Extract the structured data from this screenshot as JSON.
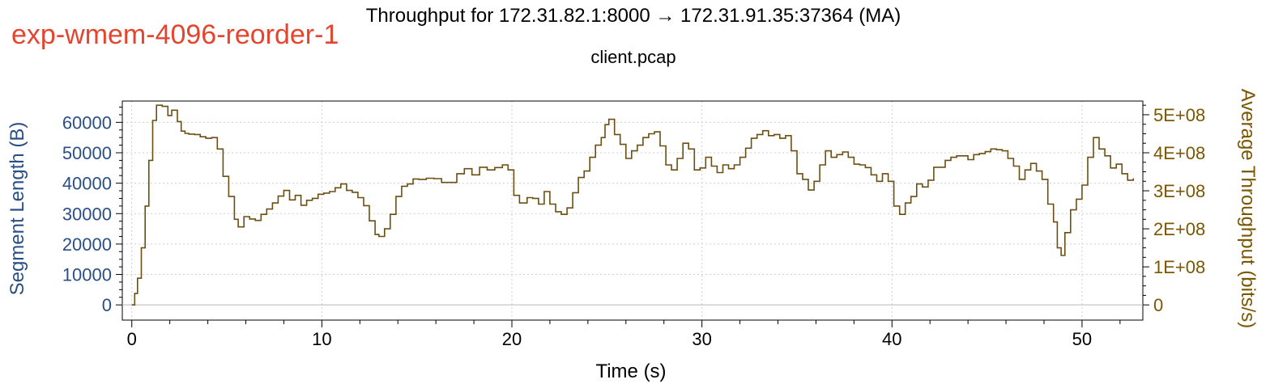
{
  "window_label": "exp-wmem-4096-reorder-1",
  "colors": {
    "overlay_label": "#e5452e",
    "left_axis": "#2a4f86",
    "right_axis": "#7a5700",
    "series": "#6b4f12",
    "grid": "#cfcfcf",
    "zero_line": "#b8b8b8",
    "frame": "#000000"
  },
  "chart_data": {
    "type": "line",
    "title": "Throughput for 172.31.82.1:8000 → 172.31.91.35:37364 (MA)",
    "subtitle": "client.pcap",
    "xlabel": "Time (s)",
    "ylabel_left": "Segment Length (B)",
    "ylabel_right": "Average Throughput (bits/s)",
    "xlim": [
      -0.5,
      53.2
    ],
    "ylim_left": [
      -5000,
      67000
    ],
    "ylim_right": [
      -40000000,
      536000000
    ],
    "x_ticks": [
      "0",
      "10",
      "20",
      "30",
      "40",
      "50"
    ],
    "y_left_ticks": [
      "0",
      "10000",
      "20000",
      "30000",
      "40000",
      "50000",
      "60000"
    ],
    "y_right_ticks": [
      "0",
      "1E+08",
      "2E+08",
      "3E+08",
      "4E+08",
      "5E+08"
    ],
    "grid": true,
    "series": [
      {
        "axis": "right",
        "x": [
          0.0,
          0.15,
          0.3,
          0.5,
          0.7,
          0.9,
          1.1,
          1.3,
          1.6,
          1.9,
          2.1,
          2.4,
          2.6,
          2.8,
          3.0,
          3.3,
          3.6,
          3.9,
          4.2,
          4.5,
          4.8,
          5.1,
          5.4,
          5.6,
          5.9,
          6.2,
          6.5,
          6.8,
          7.1,
          7.4,
          7.7,
          8.0,
          8.3,
          8.6,
          8.9,
          9.2,
          9.5,
          9.8,
          10.1,
          10.4,
          10.7,
          11.0,
          11.3,
          11.6,
          11.9,
          12.2,
          12.5,
          12.8,
          13.0,
          13.3,
          13.6,
          13.9,
          14.2,
          14.5,
          14.8,
          15.1,
          15.5,
          15.9,
          16.3,
          16.7,
          17.1,
          17.5,
          17.9,
          18.3,
          18.7,
          19.1,
          19.5,
          19.8,
          20.1,
          20.4,
          20.8,
          21.1,
          21.4,
          21.7,
          22.0,
          22.3,
          22.6,
          22.9,
          23.2,
          23.5,
          23.8,
          24.1,
          24.4,
          24.7,
          24.9,
          25.1,
          25.4,
          25.7,
          26.0,
          26.3,
          26.6,
          26.9,
          27.2,
          27.5,
          27.8,
          28.1,
          28.4,
          28.7,
          29.0,
          29.3,
          29.6,
          29.9,
          30.2,
          30.5,
          30.8,
          31.1,
          31.4,
          31.7,
          32.0,
          32.3,
          32.6,
          32.9,
          33.2,
          33.5,
          33.8,
          34.1,
          34.4,
          34.7,
          35.0,
          35.3,
          35.6,
          35.9,
          36.2,
          36.5,
          36.8,
          37.1,
          37.4,
          37.7,
          38.0,
          38.3,
          38.6,
          38.9,
          39.2,
          39.5,
          39.8,
          40.1,
          40.4,
          40.7,
          41.0,
          41.3,
          41.6,
          41.9,
          42.2,
          42.5,
          42.8,
          43.1,
          43.4,
          43.7,
          44.0,
          44.3,
          44.6,
          44.9,
          45.2,
          45.5,
          45.8,
          46.1,
          46.4,
          46.7,
          47.0,
          47.3,
          47.6,
          47.9,
          48.2,
          48.5,
          48.7,
          48.9,
          49.1,
          49.4,
          49.7,
          50.0,
          50.3,
          50.6,
          50.9,
          51.2,
          51.5,
          51.8,
          52.1,
          52.4,
          52.7
        ],
        "y": [
          0,
          30000000,
          70000000,
          150000000,
          260000000,
          380000000,
          485000000,
          525000000,
          522000000,
          498000000,
          512000000,
          482000000,
          457000000,
          451000000,
          449000000,
          448000000,
          442000000,
          438000000,
          440000000,
          410000000,
          338000000,
          285000000,
          225000000,
          205000000,
          232000000,
          226000000,
          222000000,
          238000000,
          252000000,
          268000000,
          286000000,
          301000000,
          276000000,
          288000000,
          262000000,
          275000000,
          280000000,
          291000000,
          294000000,
          298000000,
          308000000,
          318000000,
          301000000,
          296000000,
          282000000,
          261000000,
          221000000,
          185000000,
          180000000,
          200000000,
          238000000,
          285000000,
          312000000,
          318000000,
          331000000,
          330000000,
          333000000,
          332000000,
          322000000,
          322000000,
          345000000,
          358000000,
          342000000,
          362000000,
          355000000,
          361000000,
          368000000,
          355000000,
          288000000,
          268000000,
          282000000,
          280000000,
          265000000,
          298000000,
          265000000,
          245000000,
          238000000,
          255000000,
          295000000,
          335000000,
          352000000,
          388000000,
          420000000,
          440000000,
          474000000,
          488000000,
          448000000,
          422000000,
          385000000,
          405000000,
          420000000,
          440000000,
          450000000,
          455000000,
          418000000,
          368000000,
          355000000,
          385000000,
          425000000,
          410000000,
          355000000,
          360000000,
          388000000,
          365000000,
          348000000,
          368000000,
          358000000,
          368000000,
          388000000,
          412000000,
          438000000,
          448000000,
          458000000,
          445000000,
          448000000,
          438000000,
          445000000,
          405000000,
          345000000,
          330000000,
          302000000,
          325000000,
          368000000,
          405000000,
          388000000,
          395000000,
          402000000,
          388000000,
          370000000,
          368000000,
          361000000,
          342000000,
          325000000,
          345000000,
          325000000,
          260000000,
          238000000,
          268000000,
          285000000,
          318000000,
          310000000,
          328000000,
          362000000,
          362000000,
          380000000,
          388000000,
          392000000,
          392000000,
          382000000,
          395000000,
          398000000,
          403000000,
          410000000,
          408000000,
          405000000,
          385000000,
          365000000,
          330000000,
          355000000,
          372000000,
          352000000,
          330000000,
          265000000,
          218000000,
          150000000,
          130000000,
          190000000,
          250000000,
          278000000,
          315000000,
          388000000,
          440000000,
          410000000,
          392000000,
          360000000,
          370000000,
          345000000,
          328000000,
          333000000
        ]
      }
    ]
  }
}
